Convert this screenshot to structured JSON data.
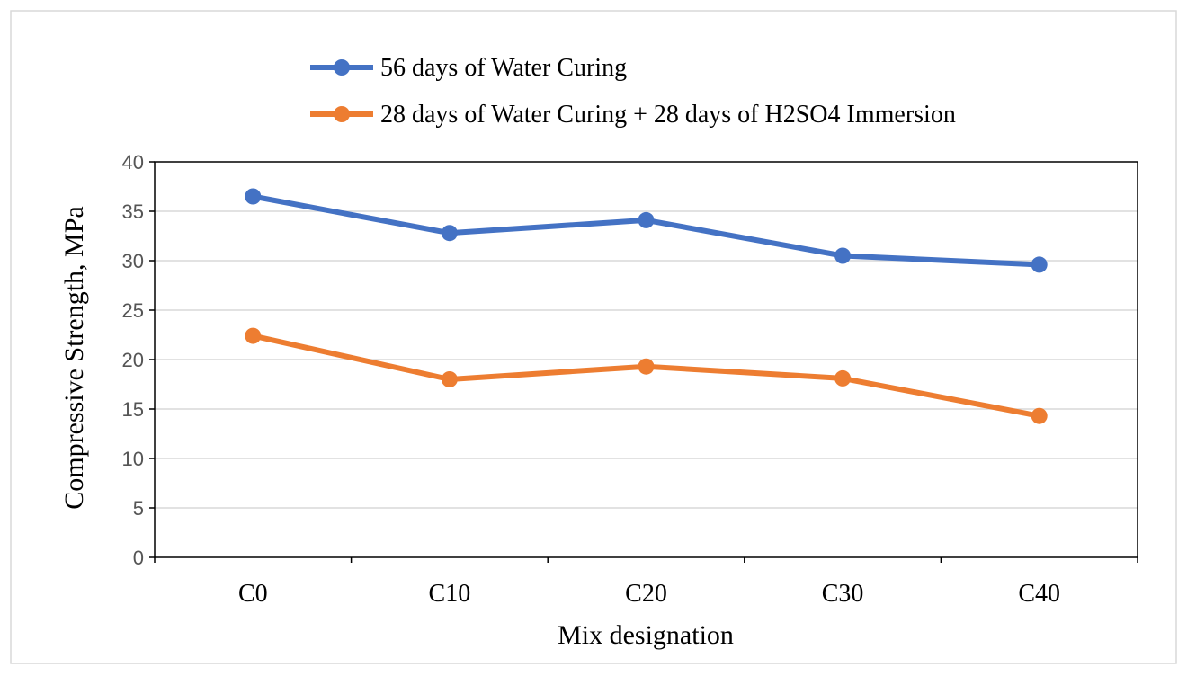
{
  "chart_data": {
    "type": "line",
    "title": "",
    "xlabel": "Mix designation",
    "ylabel": "Compressive Strength, MPa",
    "categories": [
      "C0",
      "C10",
      "C20",
      "C30",
      "C40"
    ],
    "ylim": [
      0,
      40
    ],
    "yticks": [
      0,
      5,
      10,
      15,
      20,
      25,
      30,
      35,
      40
    ],
    "grid": true,
    "legend_position": "top",
    "series": [
      {
        "name": "56 days of Water Curing",
        "color": "#4472C4",
        "values": [
          36.5,
          32.8,
          34.1,
          30.5,
          29.6
        ]
      },
      {
        "name": "28 days of Water Curing + 28 days of H2SO4 Immersion",
        "color": "#ED7D31",
        "values": [
          22.4,
          18.0,
          19.3,
          18.1,
          14.3
        ]
      }
    ]
  }
}
